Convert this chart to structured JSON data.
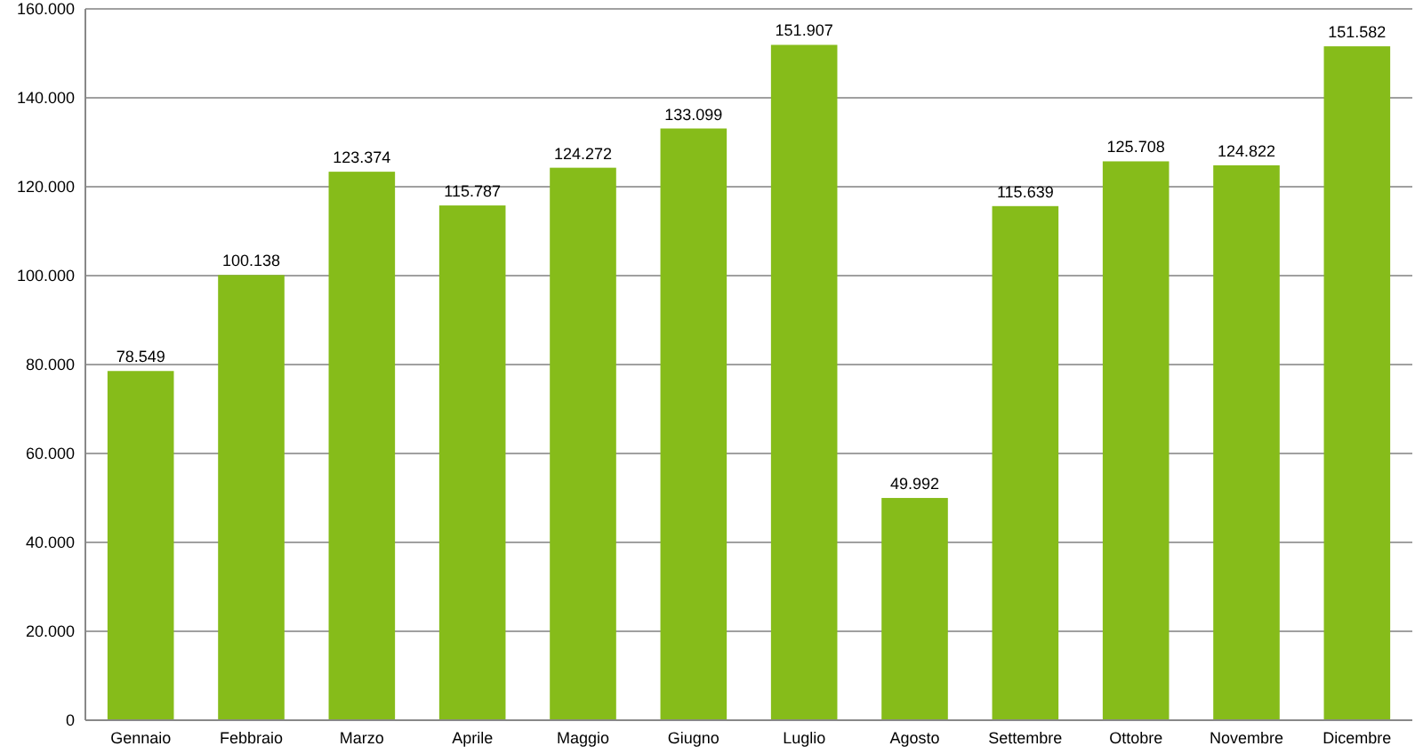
{
  "chart_data": {
    "type": "bar",
    "categories": [
      "Gennaio",
      "Febbraio",
      "Marzo",
      "Aprile",
      "Maggio",
      "Giugno",
      "Luglio",
      "Agosto",
      "Settembre",
      "Ottobre",
      "Novembre",
      "Dicembre"
    ],
    "values": [
      78549,
      100138,
      123374,
      115787,
      124272,
      133099,
      151907,
      49992,
      115639,
      125708,
      124822,
      151582
    ],
    "value_labels": [
      "78.549",
      "100.138",
      "123.374",
      "115.787",
      "124.272",
      "133.099",
      "151.907",
      "49.992",
      "115.639",
      "125.708",
      "124.822",
      "151.582"
    ],
    "color": "#86bc1a",
    "ylim": [
      0,
      160000
    ],
    "yticks": [
      {
        "value": 0,
        "label": "0"
      },
      {
        "value": 20000,
        "label": "20.000"
      },
      {
        "value": 40000,
        "label": "40.000"
      },
      {
        "value": 60000,
        "label": "60.000"
      },
      {
        "value": 80000,
        "label": "80.000"
      },
      {
        "value": 100000,
        "label": "100.000"
      },
      {
        "value": 120000,
        "label": "120.000"
      },
      {
        "value": 140000,
        "label": "140.000"
      },
      {
        "value": 160000,
        "label": "160.000"
      }
    ],
    "grid": true
  }
}
